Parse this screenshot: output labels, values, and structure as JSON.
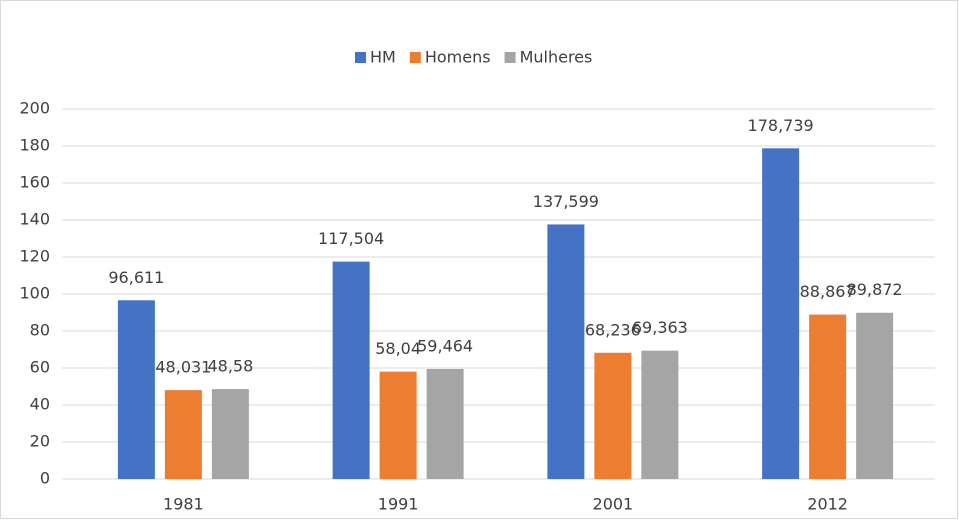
{
  "chart_data": {
    "type": "bar",
    "categories": [
      "1981",
      "1991",
      "2001",
      "2012"
    ],
    "series": [
      {
        "name": "HM",
        "color": "#4472c4",
        "values": [
          96.611,
          117.504,
          137.599,
          178.739
        ],
        "value_labels": [
          "96,611",
          "117,504",
          "137,599",
          "178,739"
        ]
      },
      {
        "name": "Homens",
        "color": "#ed7d31",
        "values": [
          48.031,
          58.04,
          68.236,
          88.867
        ],
        "value_labels": [
          "48,031",
          "58,04",
          "68,236",
          "88,867"
        ]
      },
      {
        "name": "Mulheres",
        "color": "#a5a5a5",
        "values": [
          48.58,
          59.464,
          69.363,
          89.872
        ],
        "value_labels": [
          "48,58",
          "59,464",
          "69,363",
          "89,872"
        ]
      }
    ],
    "ylim": [
      0,
      200
    ],
    "yticks": [
      0,
      20,
      40,
      60,
      80,
      100,
      120,
      140,
      160,
      180,
      200
    ],
    "grid": true,
    "legend": "top"
  }
}
